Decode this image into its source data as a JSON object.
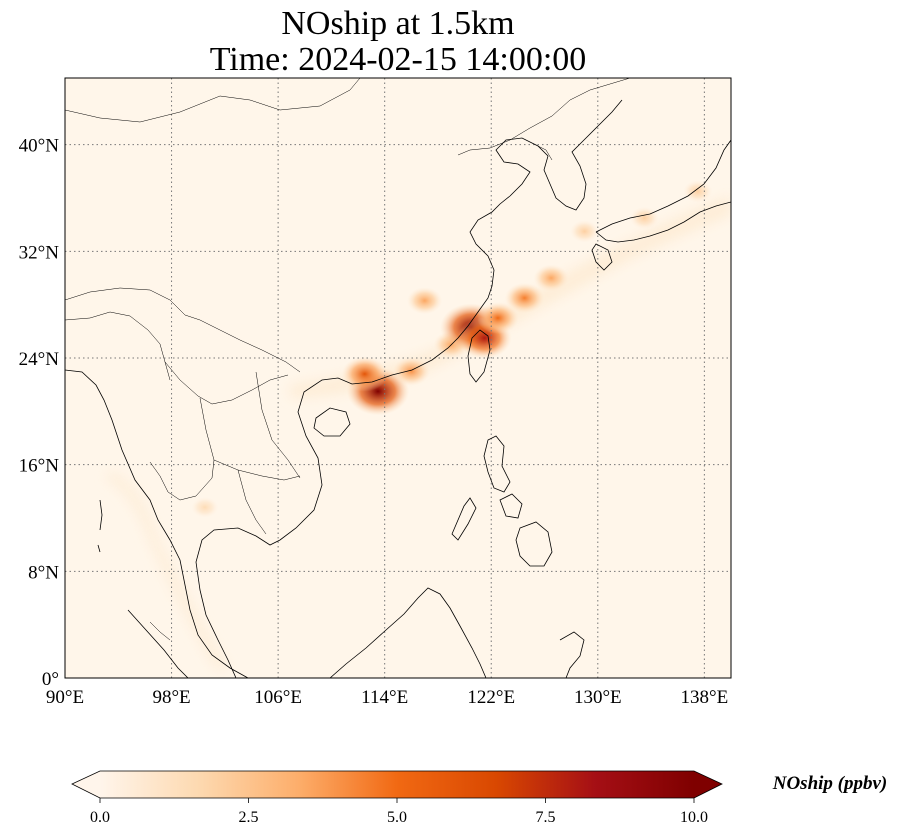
{
  "title": {
    "line1": "NOship at 1.5km",
    "line2": "Time: 2024-02-15 14:00:00"
  },
  "map": {
    "lon_range": [
      90,
      140
    ],
    "lat_range": [
      0,
      45
    ],
    "lon_ticks": [
      {
        "value": 90,
        "label": "90°E"
      },
      {
        "value": 98,
        "label": "98°E"
      },
      {
        "value": 106,
        "label": "106°E"
      },
      {
        "value": 114,
        "label": "114°E"
      },
      {
        "value": 122,
        "label": "122°E"
      },
      {
        "value": 130,
        "label": "130°E"
      },
      {
        "value": 138,
        "label": "138°E"
      }
    ],
    "lat_ticks": [
      {
        "value": 0,
        "label": "0°"
      },
      {
        "value": 8,
        "label": "8°N"
      },
      {
        "value": 16,
        "label": "16°N"
      },
      {
        "value": 24,
        "label": "24°N"
      },
      {
        "value": 32,
        "label": "32°N"
      },
      {
        "value": 40,
        "label": "40°N"
      }
    ],
    "grid": "dotted",
    "background_color": "#fff6ea"
  },
  "colorbar": {
    "label": "NOship (ppbv)",
    "range": [
      0,
      10
    ],
    "ticks": [
      "0.0",
      "2.5",
      "5.0",
      "7.5",
      "10.0"
    ],
    "colors": [
      "#fff5eb",
      "#fdd9b0",
      "#fdae6b",
      "#f16913",
      "#d94801",
      "#a50f15",
      "#7f0000"
    ],
    "extend": "both"
  },
  "field": {
    "hotspots": [
      {
        "lon": 113.5,
        "lat": 21.5,
        "value": 10.0
      },
      {
        "lon": 112.5,
        "lat": 22.8,
        "value": 6.0
      },
      {
        "lon": 116.0,
        "lat": 23.0,
        "value": 4.0
      },
      {
        "lon": 119.0,
        "lat": 25.0,
        "value": 3.5
      },
      {
        "lon": 120.5,
        "lat": 26.3,
        "value": 10.0
      },
      {
        "lon": 121.5,
        "lat": 25.5,
        "value": 8.0
      },
      {
        "lon": 122.5,
        "lat": 27.0,
        "value": 5.0
      },
      {
        "lon": 124.5,
        "lat": 28.5,
        "value": 4.5
      },
      {
        "lon": 126.5,
        "lat": 30.0,
        "value": 3.5
      },
      {
        "lon": 117.0,
        "lat": 28.3,
        "value": 3.5
      },
      {
        "lon": 129.0,
        "lat": 33.5,
        "value": 2.0
      },
      {
        "lon": 133.5,
        "lat": 34.5,
        "value": 2.0
      },
      {
        "lon": 137.5,
        "lat": 36.5,
        "value": 2.0
      },
      {
        "lon": 100.5,
        "lat": 12.8,
        "value": 1.5
      }
    ]
  }
}
